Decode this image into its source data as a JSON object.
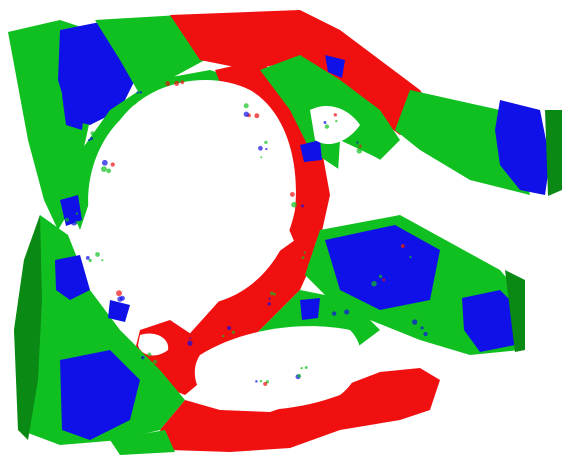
{
  "image": {
    "subject": "segmented-3d-mesh",
    "colors": {
      "background": "#ffffff",
      "red": "#f01010",
      "green": "#10c020",
      "blue": "#1010e8",
      "dark_green": "#0a8a14",
      "dark_red": "#b00808",
      "dark_blue": "#0a0aa0"
    }
  }
}
